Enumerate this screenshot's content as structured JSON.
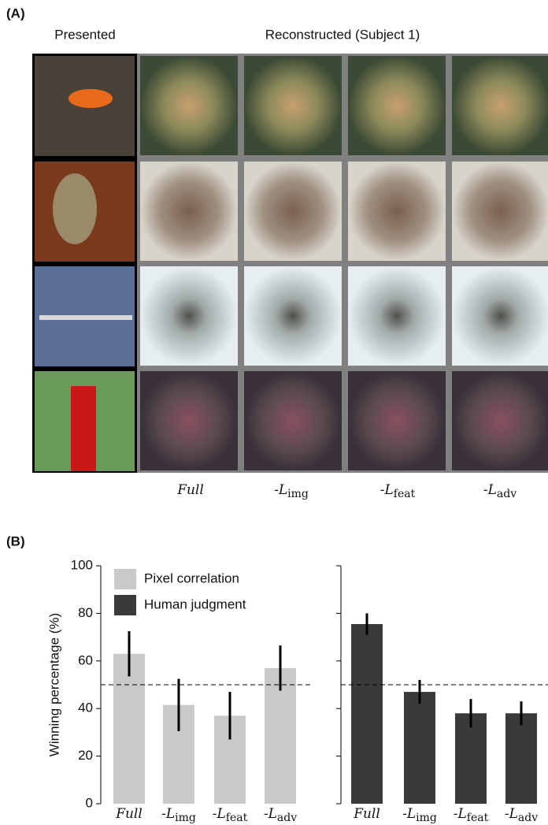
{
  "panel_a": {
    "label": "(A)",
    "presented_label": "Presented",
    "reconstructed_label": "Reconstructed (Subject 1)",
    "conditions": [
      {
        "text": "Full"
      },
      {
        "text": "-L",
        "sub": "img"
      },
      {
        "text": "-L",
        "sub": "feat"
      },
      {
        "text": "-L",
        "sub": "adv"
      }
    ]
  },
  "panel_b": {
    "label": "(B)"
  },
  "chart_data": [
    {
      "type": "bar",
      "ylabel": "Winning percentage (%)",
      "categories": [
        {
          "text": "Full"
        },
        {
          "text": "-L",
          "sub": "img"
        },
        {
          "text": "-L",
          "sub": "feat"
        },
        {
          "text": "-L",
          "sub": "adv"
        }
      ],
      "series": [
        {
          "name": "Pixel correlation",
          "color": "#c9c9c9",
          "values": [
            63,
            41.5,
            37,
            57
          ],
          "errors": [
            9.5,
            11,
            10,
            9.5
          ]
        }
      ],
      "ylim": [
        0,
        100
      ],
      "yticks": [
        0,
        20,
        40,
        60,
        80,
        100
      ],
      "ytick_labels": true,
      "reference_line": 50,
      "legend": "top-left"
    },
    {
      "type": "bar",
      "categories": [
        {
          "text": "Full"
        },
        {
          "text": "-L",
          "sub": "img"
        },
        {
          "text": "-L",
          "sub": "feat"
        },
        {
          "text": "-L",
          "sub": "adv"
        }
      ],
      "series": [
        {
          "name": "Human judgment",
          "color": "#3a3a3a",
          "values": [
            75.5,
            47,
            38,
            38
          ],
          "errors": [
            4.5,
            5,
            6,
            5
          ]
        }
      ],
      "ylim": [
        0,
        100
      ],
      "yticks": [
        0,
        20,
        40,
        60,
        80,
        100
      ],
      "ytick_labels": false,
      "reference_line": 50
    }
  ]
}
